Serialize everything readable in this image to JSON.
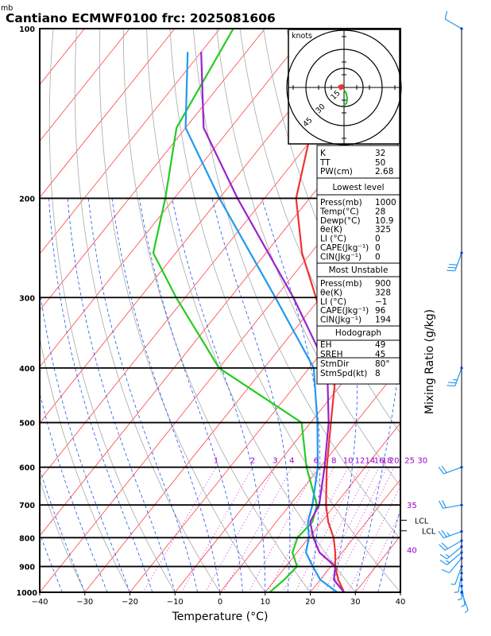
{
  "chart_data": {
    "type": "line",
    "title": "Cantiano ECMWF0100  frc: 2025081606",
    "unit_label": "mb",
    "xlabel": "Temperature (°C)",
    "ylabel_right": "Mixing Ratio (g/kg)",
    "xlim": [
      -40,
      40
    ],
    "ylim_mb": [
      1000,
      100
    ],
    "y_scale": "log",
    "x_ticks": [
      "−40",
      "−30",
      "−20",
      "−10",
      "0",
      "10",
      "20",
      "30",
      "40"
    ],
    "pressure_levels": [
      100,
      200,
      300,
      400,
      500,
      600,
      700,
      800,
      900,
      1000
    ],
    "pressure_tick_labels": [
      "100",
      "200",
      "300",
      "400",
      "500",
      "600",
      "700",
      "800",
      "900",
      "1000"
    ],
    "mixing_ratio_labels": [
      "1",
      "2",
      "3",
      "4",
      "6",
      "8",
      "10",
      "12",
      "14",
      "16",
      "18",
      "20",
      "25",
      "30"
    ],
    "mixing_ratio_values": [
      1,
      2,
      3,
      4,
      6,
      8,
      10,
      12,
      14,
      16,
      18,
      20,
      25,
      30
    ],
    "side_labels": [
      "35",
      "40"
    ],
    "lcl_labels": [
      "LCL",
      "LCL"
    ],
    "lcl_pressures_mb": [
      745,
      778
    ],
    "series": [
      {
        "key": "temperature",
        "color": "#ee3333",
        "points": [
          [
            1000,
            27.5
          ],
          [
            950,
            24
          ],
          [
            900,
            21
          ],
          [
            850,
            18.5
          ],
          [
            800,
            15.5
          ],
          [
            750,
            11.5
          ],
          [
            700,
            8
          ],
          [
            600,
            1.5
          ],
          [
            500,
            -5.5
          ],
          [
            400,
            -14
          ],
          [
            300,
            -31
          ],
          [
            250,
            -42
          ],
          [
            200,
            -53
          ],
          [
            150,
            -62
          ],
          [
            100,
            -68
          ]
        ]
      },
      {
        "key": "dewpoint",
        "color": "#22cc22",
        "points": [
          [
            1000,
            11
          ],
          [
            950,
            12
          ],
          [
            900,
            12.5
          ],
          [
            850,
            9
          ],
          [
            800,
            7.5
          ],
          [
            750,
            8
          ],
          [
            700,
            6
          ],
          [
            600,
            -3
          ],
          [
            500,
            -12
          ],
          [
            400,
            -40
          ],
          [
            300,
            -62
          ],
          [
            250,
            -75
          ],
          [
            200,
            -82
          ],
          [
            150,
            -92
          ],
          [
            100,
            -97
          ]
        ]
      },
      {
        "key": "virtual_temperature",
        "color": "#9922cc",
        "points": [
          [
            1000,
            27.5
          ],
          [
            950,
            23
          ],
          [
            900,
            21
          ],
          [
            850,
            15
          ],
          [
            800,
            11
          ],
          [
            750,
            7.5
          ],
          [
            700,
            6.5
          ],
          [
            600,
            1
          ],
          [
            500,
            -6
          ],
          [
            400,
            -16
          ],
          [
            300,
            -36
          ],
          [
            200,
            -66
          ],
          [
            150,
            -86
          ],
          [
            110,
            -100
          ]
        ]
      },
      {
        "key": "parcel",
        "color": "#2299ee",
        "points": [
          [
            1000,
            26
          ],
          [
            950,
            20
          ],
          [
            900,
            16
          ],
          [
            850,
            12
          ],
          [
            800,
            10
          ],
          [
            750,
            7
          ],
          [
            700,
            5
          ],
          [
            600,
            -0.5
          ],
          [
            500,
            -8.5
          ],
          [
            400,
            -19
          ],
          [
            300,
            -40
          ],
          [
            200,
            -70
          ],
          [
            150,
            -90
          ],
          [
            110,
            -103
          ]
        ]
      }
    ],
    "hodograph": {
      "units_label": "knots",
      "ring_labels": [
        "15",
        "30",
        "45"
      ],
      "ring_values": [
        15,
        30,
        45
      ]
    },
    "wind_barbs": [
      {
        "p": 100,
        "dir": 300,
        "kt": 10
      },
      {
        "p": 250,
        "dir": 200,
        "kt": 30
      },
      {
        "p": 400,
        "dir": 200,
        "kt": 25
      },
      {
        "p": 600,
        "dir": 250,
        "kt": 20
      },
      {
        "p": 700,
        "dir": 260,
        "kt": 20
      },
      {
        "p": 780,
        "dir": 250,
        "kt": 25
      },
      {
        "p": 810,
        "dir": 240,
        "kt": 20
      },
      {
        "p": 830,
        "dir": 230,
        "kt": 15
      },
      {
        "p": 850,
        "dir": 230,
        "kt": 15
      },
      {
        "p": 870,
        "dir": 220,
        "kt": 10
      },
      {
        "p": 900,
        "dir": 200,
        "kt": 5
      },
      {
        "p": 925,
        "dir": 190,
        "kt": 5
      },
      {
        "p": 950,
        "dir": 180,
        "kt": 5
      },
      {
        "p": 975,
        "dir": 170,
        "kt": 5
      },
      {
        "p": 1000,
        "dir": 160,
        "kt": 5
      }
    ],
    "grid": true
  },
  "indices": {
    "k_label": "K",
    "k_value": "32",
    "tt_label": "TT",
    "tt_value": "50",
    "pw_label": "PW(cm)",
    "pw_value": "2.68",
    "lowest_title": "Lowest level",
    "lowest": [
      {
        "label": "Press(mb)",
        "value": "1000"
      },
      {
        "label": "Temp(°C)",
        "value": "28"
      },
      {
        "label": "Dewp(°C)",
        "value": "10.9"
      },
      {
        "label": "θe(K)",
        "value": "325"
      },
      {
        "label": "LI (°C)",
        "value": "0"
      },
      {
        "label": "CAPE(Jkg⁻¹)",
        "value": "0"
      },
      {
        "label": "CIN(Jkg⁻¹)",
        "value": "0"
      }
    ],
    "unstable_title": "Most Unstable",
    "unstable": [
      {
        "label": "Press(mb)",
        "value": "900"
      },
      {
        "label": "θe(K)",
        "value": "328"
      },
      {
        "label": "LI (°C)",
        "value": "−1"
      },
      {
        "label": "CAPE(Jkg⁻¹)",
        "value": "96"
      },
      {
        "label": "CIN(Jkg⁻¹)",
        "value": "194"
      }
    ],
    "hodo_title": "Hodograph",
    "hodo": [
      {
        "label": "EH",
        "value": "49"
      },
      {
        "label": "SREH",
        "value": "45"
      },
      {
        "label": "StmDir",
        "value": "80°"
      },
      {
        "label": "StmSpd(kt)",
        "value": "8"
      }
    ]
  }
}
